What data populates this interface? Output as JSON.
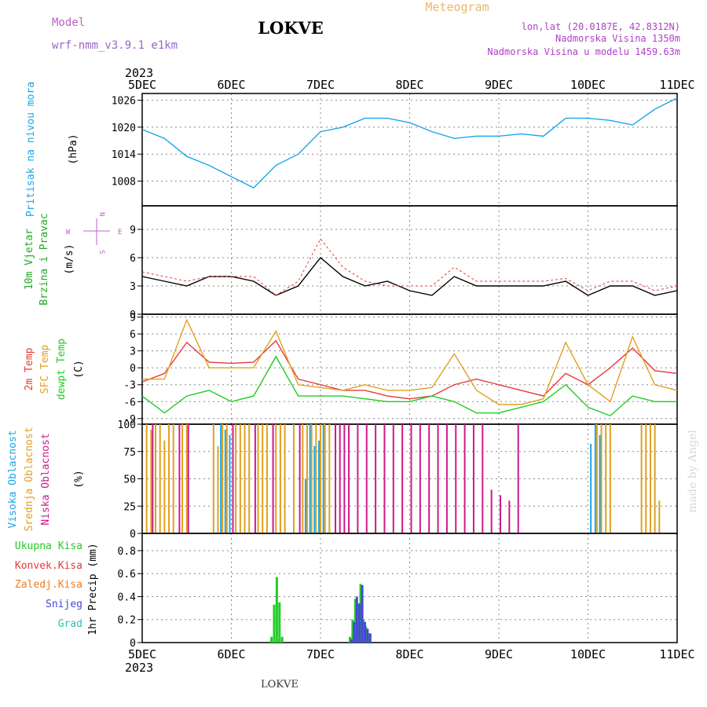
{
  "header": {
    "model_label": "Model",
    "model_name": "wrf-nmm_v3.9.1 e1km",
    "station": "LOKVE",
    "meteogram": "Meteogram",
    "lonlat": "lon,lat (20.0187E, 42.8312N)",
    "altitude": "Nadmorska Visina 1350m",
    "model_altitude": "Nadmorska Visina u modelu 1459.63m"
  },
  "time_axis": {
    "year": "2023",
    "days": [
      "5DEC",
      "6DEC",
      "7DEC",
      "8DEC",
      "9DEC",
      "10DEC",
      "11DEC"
    ]
  },
  "footer": {
    "station": "LOKVE",
    "watermark": "made by Angel"
  },
  "colors": {
    "pressure": "#1aa7e8",
    "temp2m": "#e83a3a",
    "sfc": "#e0a020",
    "dewpt": "#22cc22",
    "high": "#1aa7e8",
    "mid": "#e0a020",
    "low": "#cc1a8c",
    "total": "#22cc22",
    "conv": "#e83a3a",
    "frz": "#f07a20",
    "snow": "#4646d8",
    "grad": "#22c8b4"
  },
  "chart_data": [
    {
      "type": "line",
      "title": "",
      "ylabel": "Pritisak na nivou mora",
      "unit": "(hPa)",
      "yticks": [
        1008,
        1014,
        1020,
        1026
      ],
      "ylim": [
        1002.5,
        1027.5
      ],
      "x_days": [
        0,
        0.25,
        0.5,
        0.75,
        1,
        1.25,
        1.5,
        1.75,
        2,
        2.25,
        2.5,
        2.75,
        3,
        3.25,
        3.5,
        3.75,
        4,
        4.25,
        4.5,
        4.75,
        5,
        5.25,
        5.5,
        5.75,
        6
      ],
      "series": [
        {
          "name": "",
          "values": [
            1019.5,
            1017.5,
            1013.5,
            1011.5,
            1009,
            1006.5,
            1011.5,
            1014,
            1019,
            1020,
            1022,
            1022,
            1021,
            1019,
            1017.5,
            1018,
            1018,
            1018.5,
            1018,
            1022,
            1022,
            1021.5,
            1020.5,
            1024,
            1026.5
          ]
        }
      ]
    },
    {
      "type": "line",
      "title": "",
      "ylabel": [
        "10m Vjetar",
        "Brzina i Pravac"
      ],
      "unit": "(m/s)",
      "yticks": [
        0,
        3,
        6,
        9
      ],
      "ylim": [
        0,
        11.5
      ],
      "compass": {
        "n": "N",
        "s": "S",
        "e": "E",
        "w": "W"
      },
      "x_days": [
        0,
        0.25,
        0.5,
        0.75,
        1,
        1.25,
        1.5,
        1.75,
        2,
        2.25,
        2.5,
        2.75,
        3,
        3.25,
        3.5,
        3.75,
        4,
        4.25,
        4.5,
        4.75,
        5,
        5.25,
        5.5,
        5.75,
        6
      ],
      "series": [
        {
          "name": "",
          "values": [
            4,
            3.5,
            3,
            4,
            4,
            3.5,
            2,
            3,
            6,
            4,
            3,
            3.5,
            2.5,
            2,
            4,
            3,
            3,
            3,
            3,
            3.5,
            2,
            3,
            3,
            2,
            2.5
          ]
        },
        {
          "name": "",
          "values": [
            4.5,
            4,
            3.5,
            4,
            4,
            4,
            2,
            3.5,
            8,
            5,
            3.5,
            3,
            3,
            3,
            5,
            3.5,
            3.5,
            3.5,
            3.5,
            3.8,
            2.5,
            3.5,
            3.5,
            2.5,
            3
          ]
        }
      ]
    },
    {
      "type": "line",
      "title": "",
      "ylabel": [
        "2m Temp",
        "SFC Temp",
        "dewpt Temp"
      ],
      "unit": "(C)",
      "yticks": [
        -9,
        -6,
        -3,
        0,
        3,
        6,
        9
      ],
      "ylim": [
        -10,
        9.5
      ],
      "x_days": [
        0,
        0.25,
        0.5,
        0.75,
        1,
        1.25,
        1.5,
        1.75,
        2,
        2.25,
        2.5,
        2.75,
        3,
        3.25,
        3.5,
        3.75,
        4,
        4.25,
        4.5,
        4.75,
        5,
        5.25,
        5.5,
        5.75,
        6
      ],
      "series": [
        {
          "name": "",
          "values": [
            -2.5,
            -1,
            4.5,
            1,
            0.8,
            1,
            4.8,
            -2,
            -3,
            -4,
            -4,
            -5,
            -5.5,
            -5,
            -3,
            -2,
            -3,
            -4,
            -5,
            -1,
            -3,
            0,
            3.5,
            -0.5,
            -1
          ]
        },
        {
          "name": "",
          "values": [
            -2,
            -2,
            8.5,
            0,
            0,
            0,
            6.5,
            -3,
            -3.5,
            -4,
            -3,
            -4,
            -4,
            -3.5,
            2.5,
            -4,
            -6.5,
            -6.5,
            -5.5,
            4.5,
            -3,
            -6,
            5.5,
            -3,
            -4
          ]
        },
        {
          "name": "",
          "values": [
            -5,
            -8,
            -5,
            -4,
            -6,
            -5,
            2,
            -5,
            -5,
            -5,
            -5.5,
            -6,
            -6,
            -5,
            -6,
            -8,
            -8,
            -7,
            -6,
            -3,
            -7,
            -8.5,
            -5,
            -6,
            -6
          ]
        }
      ]
    },
    {
      "type": "bar",
      "title": "",
      "ylabel": [
        "Visoka Oblacnost",
        "Srednja Oblacnost",
        "Niska Oblacnost"
      ],
      "unit": "(%)",
      "yticks": [
        0,
        25,
        50,
        75,
        100
      ],
      "ylim": [
        0,
        100
      ],
      "x_days": [
        0.05,
        0.1,
        0.15,
        0.2,
        0.25,
        0.3,
        0.35,
        0.4,
        0.45,
        0.5,
        0.8,
        0.85,
        0.9,
        0.95,
        1.0,
        1.05,
        1.1,
        1.15,
        1.2,
        1.25,
        1.3,
        1.35,
        1.4,
        1.45,
        1.5,
        1.55,
        1.6,
        1.7,
        1.75,
        1.8,
        1.85,
        1.9,
        1.95,
        2.0,
        2.05,
        2.1,
        2.15,
        2.2,
        2.25,
        2.3,
        2.4,
        2.5,
        2.6,
        2.7,
        2.8,
        2.9,
        3.0,
        3.1,
        3.2,
        3.3,
        3.4,
        3.5,
        3.6,
        3.7,
        3.8,
        3.9,
        4.0,
        4.1,
        4.2,
        4.5,
        4.6,
        4.7,
        4.8,
        5.0,
        5.05,
        5.1,
        5.15,
        5.2,
        5.25,
        5.3,
        5.35,
        5.6,
        5.65,
        5.7,
        5.75,
        5.8
      ],
      "series": [
        {
          "name": "",
          "values": [
            0,
            0,
            0,
            0,
            0,
            0,
            0,
            0,
            0,
            0,
            0,
            0,
            100,
            95,
            90,
            0,
            0,
            0,
            0,
            0,
            0,
            0,
            0,
            0,
            0,
            0,
            0,
            0,
            0,
            0,
            50,
            100,
            80,
            85,
            100,
            0,
            0,
            0,
            0,
            0,
            0,
            0,
            0,
            0,
            0,
            0,
            0,
            0,
            0,
            0,
            0,
            0,
            0,
            0,
            0,
            0,
            0,
            0,
            0,
            0,
            0,
            0,
            0,
            0,
            82,
            100,
            90,
            0,
            0,
            0,
            0,
            0,
            0,
            0,
            0,
            0
          ]
        },
        {
          "name": "",
          "values": [
            100,
            95,
            100,
            100,
            85,
            100,
            100,
            0,
            100,
            100,
            100,
            80,
            100,
            100,
            0,
            100,
            100,
            100,
            100,
            0,
            100,
            100,
            100,
            0,
            100,
            100,
            100,
            100,
            0,
            100,
            100,
            100,
            100,
            100,
            100,
            100,
            0,
            0,
            0,
            0,
            0,
            0,
            0,
            0,
            0,
            0,
            0,
            0,
            0,
            0,
            0,
            0,
            0,
            0,
            0,
            0,
            0,
            0,
            0,
            0,
            0,
            0,
            0,
            0,
            0,
            100,
            100,
            100,
            100,
            0,
            0,
            100,
            100,
            100,
            100,
            30
          ]
        },
        {
          "name": "",
          "values": [
            0,
            100,
            0,
            0,
            0,
            0,
            0,
            100,
            0,
            100,
            0,
            0,
            0,
            0,
            100,
            0,
            0,
            0,
            0,
            100,
            0,
            0,
            0,
            100,
            0,
            0,
            0,
            0,
            100,
            0,
            0,
            0,
            0,
            0,
            0,
            0,
            100,
            100,
            100,
            100,
            100,
            100,
            100,
            100,
            100,
            100,
            100,
            100,
            100,
            100,
            100,
            100,
            100,
            100,
            100,
            40,
            35,
            30,
            100,
            0,
            0,
            0,
            0,
            0,
            0,
            0,
            0,
            0,
            0,
            0,
            0,
            0,
            0,
            0,
            0,
            0
          ]
        }
      ]
    },
    {
      "type": "bar",
      "title": "",
      "ylabel": [
        "Ukupna Kisa",
        "Konvek.Kisa",
        "Zaledj.Kisa",
        "Snijeg",
        "Grad"
      ],
      "axis_label": "1hr Precip (mm)",
      "yticks": [
        0,
        0.2,
        0.4,
        0.6,
        0.8
      ],
      "ylim": [
        0,
        0.95
      ],
      "x_days": [
        1.45,
        1.48,
        1.51,
        1.54,
        1.57,
        1.6,
        2.33,
        2.36,
        2.39,
        2.42,
        2.45,
        2.48,
        2.51,
        2.54,
        2.57
      ],
      "series": [
        {
          "name": "",
          "values": [
            0.05,
            0.33,
            0.57,
            0.35,
            0.05,
            0,
            0.05,
            0.2,
            0.38,
            0.34,
            0.51,
            0.2,
            0.14,
            0.08,
            0
          ]
        },
        {
          "name": "",
          "values": [
            0,
            0,
            0,
            0,
            0,
            0,
            0.03,
            0.18,
            0.4,
            0.34,
            0.5,
            0.18,
            0.12,
            0.08,
            0
          ]
        }
      ]
    }
  ]
}
